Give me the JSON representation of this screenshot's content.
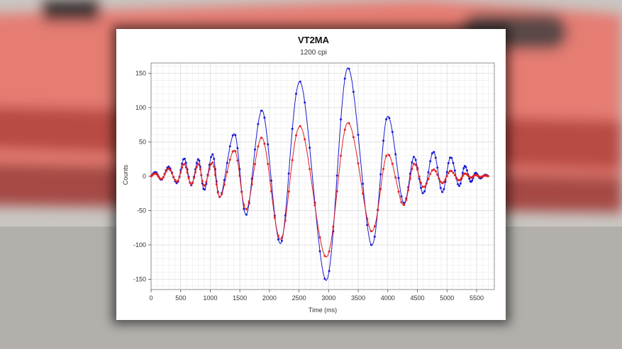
{
  "chart_data": {
    "type": "line",
    "title": "VT2MA",
    "subtitle": "1200 cpi",
    "xlabel": "Time (ms)",
    "ylabel": "Counts",
    "xlim": [
      0,
      5800
    ],
    "ylim": [
      -165,
      165
    ],
    "x_ticks": [
      0,
      500,
      1000,
      1500,
      2000,
      2500,
      3000,
      3500,
      4000,
      4500,
      5000,
      5500
    ],
    "y_ticks": [
      150,
      100,
      50,
      0,
      -50,
      -100,
      -150
    ],
    "grid": true,
    "markers": true,
    "series": [
      {
        "color": "#1a1ad6",
        "points": [
          [
            0,
            0
          ],
          [
            80,
            6
          ],
          [
            180,
            -5
          ],
          [
            300,
            14
          ],
          [
            440,
            -10
          ],
          [
            560,
            26
          ],
          [
            680,
            -13
          ],
          [
            800,
            25
          ],
          [
            900,
            -20
          ],
          [
            1040,
            32
          ],
          [
            1170,
            -30
          ],
          [
            1410,
            62
          ],
          [
            1610,
            -56
          ],
          [
            1880,
            96
          ],
          [
            2190,
            -98
          ],
          [
            2520,
            138
          ],
          [
            2960,
            -152
          ],
          [
            3320,
            158
          ],
          [
            3720,
            -100
          ],
          [
            3990,
            87
          ],
          [
            4260,
            -38
          ],
          [
            4440,
            28
          ],
          [
            4600,
            -25
          ],
          [
            4770,
            36
          ],
          [
            4920,
            -23
          ],
          [
            5060,
            28
          ],
          [
            5200,
            -14
          ],
          [
            5300,
            15
          ],
          [
            5400,
            -8
          ],
          [
            5480,
            5
          ],
          [
            5560,
            -3
          ],
          [
            5640,
            2
          ],
          [
            5700,
            0
          ]
        ]
      },
      {
        "color": "#e02020",
        "points": [
          [
            0,
            0
          ],
          [
            80,
            4
          ],
          [
            180,
            -4
          ],
          [
            300,
            11
          ],
          [
            440,
            -8
          ],
          [
            560,
            18
          ],
          [
            680,
            -12
          ],
          [
            800,
            18
          ],
          [
            900,
            -14
          ],
          [
            1040,
            20
          ],
          [
            1170,
            -30
          ],
          [
            1410,
            38
          ],
          [
            1610,
            -48
          ],
          [
            1880,
            56
          ],
          [
            2190,
            -92
          ],
          [
            2520,
            73
          ],
          [
            2960,
            -118
          ],
          [
            3320,
            78
          ],
          [
            3720,
            -80
          ],
          [
            3990,
            32
          ],
          [
            4260,
            -42
          ],
          [
            4440,
            18
          ],
          [
            4600,
            -16
          ],
          [
            4770,
            10
          ],
          [
            4920,
            -10
          ],
          [
            5060,
            8
          ],
          [
            5200,
            -6
          ],
          [
            5300,
            4
          ],
          [
            5400,
            -2
          ],
          [
            5480,
            2
          ],
          [
            5560,
            -1
          ],
          [
            5640,
            1
          ],
          [
            5700,
            0
          ]
        ]
      }
    ]
  }
}
